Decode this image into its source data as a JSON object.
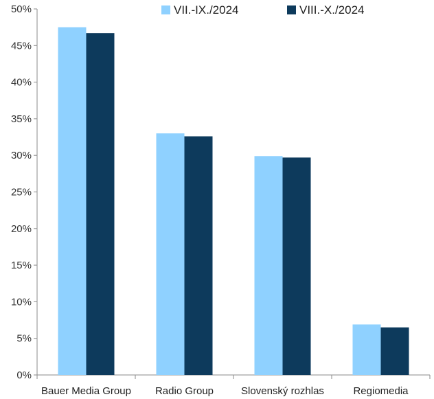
{
  "chart_data": {
    "type": "bar",
    "categories": [
      "Bauer Media Group",
      "Radio Group",
      "Slovenský rozhlas",
      "Regiomedia"
    ],
    "series": [
      {
        "name": "VII.-IX./2024",
        "color": "#8fd1ff",
        "values": [
          47.5,
          33.0,
          29.9,
          6.9
        ]
      },
      {
        "name": "VIII.-X./2024",
        "color": "#0d3a5c",
        "values": [
          46.7,
          32.6,
          29.7,
          6.5
        ]
      }
    ],
    "ylim": [
      0,
      50
    ],
    "yticks": [
      0,
      5,
      10,
      15,
      20,
      25,
      30,
      35,
      40,
      45,
      50
    ],
    "ytick_labels": [
      "0%",
      "5%",
      "10%",
      "15%",
      "20%",
      "25%",
      "30%",
      "35%",
      "40%",
      "45%",
      "50%"
    ],
    "legend_position": "top-right",
    "grid": false,
    "title": "",
    "xlabel": "",
    "ylabel": ""
  }
}
